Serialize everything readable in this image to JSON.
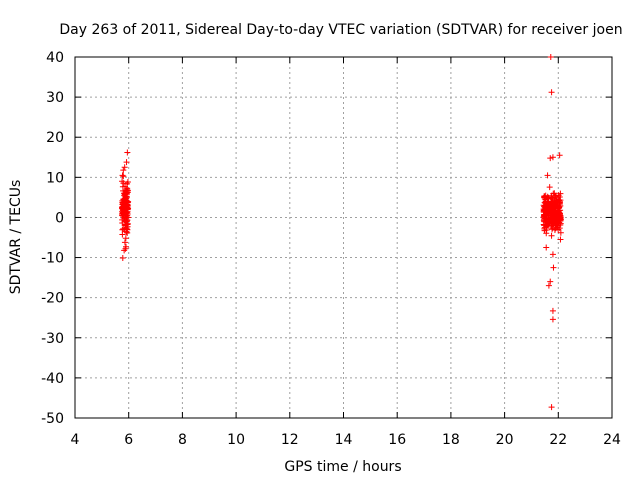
{
  "chart_data": {
    "type": "scatter",
    "title": "Day 263 of 2011, Sidereal Day-to-day VTEC variation (SDTVAR) for receiver joen",
    "xlabel": "GPS time / hours",
    "ylabel": "SDTVAR / TECUs",
    "xlim": [
      4,
      24
    ],
    "ylim": [
      -50,
      40
    ],
    "x_ticks": [
      "4",
      "6",
      "8",
      "10",
      "12",
      "14",
      "16",
      "18",
      "20",
      "22",
      "24"
    ],
    "y_ticks": [
      "40",
      "30",
      "20",
      "10",
      "0",
      "-10",
      "-20",
      "-30",
      "-40",
      "-50"
    ],
    "grid": true,
    "marker": "+",
    "series": [
      {
        "name": "SDTVAR",
        "color": "#ff0000",
        "clusters": [
          {
            "x_range": [
              5.75,
              5.98
            ],
            "y_center": 2.5,
            "y_spread": 5.5,
            "count": 170
          },
          {
            "x_range": [
              21.45,
              22.1
            ],
            "y_center": 1.0,
            "y_spread": 4.0,
            "count": 320
          }
        ],
        "points": [
          {
            "x": 5.95,
            "y": 16.2
          },
          {
            "x": 5.92,
            "y": 13.8
          },
          {
            "x": 5.85,
            "y": 12.5
          },
          {
            "x": 5.8,
            "y": 11.8
          },
          {
            "x": 5.77,
            "y": 10.5
          },
          {
            "x": 5.9,
            "y": -7.3
          },
          {
            "x": 5.83,
            "y": -8.2
          },
          {
            "x": 5.88,
            "y": -7.8
          },
          {
            "x": 5.78,
            "y": -10.1
          },
          {
            "x": 5.86,
            "y": -6.2
          },
          {
            "x": 21.72,
            "y": 40.0
          },
          {
            "x": 21.75,
            "y": 31.2
          },
          {
            "x": 22.05,
            "y": 15.5
          },
          {
            "x": 21.7,
            "y": 14.8
          },
          {
            "x": 21.8,
            "y": 15.0
          },
          {
            "x": 21.6,
            "y": 10.5
          },
          {
            "x": 21.8,
            "y": -9.2
          },
          {
            "x": 21.7,
            "y": -16.0
          },
          {
            "x": 21.65,
            "y": -17.0
          },
          {
            "x": 21.82,
            "y": -12.5
          },
          {
            "x": 21.8,
            "y": -23.3
          },
          {
            "x": 21.8,
            "y": -25.4
          },
          {
            "x": 21.75,
            "y": -47.3
          },
          {
            "x": 21.55,
            "y": -7.5
          },
          {
            "x": 22.08,
            "y": -5.5
          }
        ]
      }
    ]
  }
}
